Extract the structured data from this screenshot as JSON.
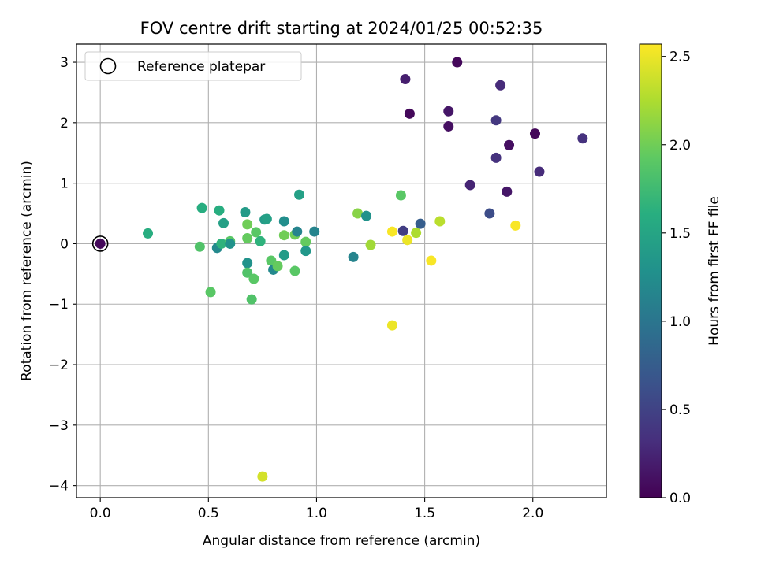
{
  "chart_data": {
    "type": "scatter",
    "title": "FOV centre drift starting at 2024/01/25 00:52:35",
    "xlabel": "Angular distance from reference (arcmin)",
    "ylabel": "Rotation from reference (arcmin)",
    "xlim": [
      -0.11,
      2.34
    ],
    "ylim": [
      -4.2,
      3.3
    ],
    "xticks": [
      0.0,
      0.5,
      1.0,
      1.5,
      2.0
    ],
    "xtick_labels": [
      "0.0",
      "0.5",
      "1.0",
      "1.5",
      "2.0"
    ],
    "yticks": [
      3,
      2,
      1,
      0,
      -1,
      -2,
      -3,
      -4
    ],
    "ytick_labels": [
      "3",
      "2",
      "1",
      "0",
      "−1",
      "−2",
      "−3",
      "−4"
    ],
    "grid": true,
    "legend": {
      "position": "top-left",
      "entries": [
        "Reference platepar"
      ]
    },
    "reference_point": {
      "x": 0.0,
      "y": 0.0
    },
    "colorbar": {
      "label": "Hours from first FF file",
      "range": [
        0.0,
        2.57
      ],
      "ticks": [
        0.0,
        0.5,
        1.0,
        1.5,
        2.0,
        2.5
      ],
      "tick_labels": [
        "0.0",
        "0.5",
        "1.0",
        "1.5",
        "2.0",
        "2.5"
      ],
      "colormap": "viridis"
    },
    "points": [
      {
        "x": 0.0,
        "y": 0.0,
        "c": 0.05
      },
      {
        "x": 0.22,
        "y": 0.17,
        "c": 1.6
      },
      {
        "x": 0.46,
        "y": -0.05,
        "c": 1.85
      },
      {
        "x": 0.47,
        "y": 0.59,
        "c": 1.6
      },
      {
        "x": 0.51,
        "y": -0.8,
        "c": 1.9
      },
      {
        "x": 0.55,
        "y": 0.55,
        "c": 1.6
      },
      {
        "x": 0.54,
        "y": -0.07,
        "c": 1.2
      },
      {
        "x": 0.56,
        "y": 0.0,
        "c": 1.65
      },
      {
        "x": 0.57,
        "y": 0.34,
        "c": 1.45
      },
      {
        "x": 0.6,
        "y": 0.04,
        "c": 1.9
      },
      {
        "x": 0.6,
        "y": 0.0,
        "c": 1.3
      },
      {
        "x": 0.67,
        "y": 0.52,
        "c": 1.4
      },
      {
        "x": 0.68,
        "y": 0.32,
        "c": 2.0
      },
      {
        "x": 0.68,
        "y": 0.09,
        "c": 1.95
      },
      {
        "x": 0.68,
        "y": -0.32,
        "c": 1.3
      },
      {
        "x": 0.68,
        "y": -0.48,
        "c": 1.85
      },
      {
        "x": 0.7,
        "y": -0.92,
        "c": 1.85
      },
      {
        "x": 0.71,
        "y": -0.58,
        "c": 1.9
      },
      {
        "x": 0.72,
        "y": 0.19,
        "c": 1.9
      },
      {
        "x": 0.74,
        "y": 0.04,
        "c": 1.65
      },
      {
        "x": 0.76,
        "y": 0.4,
        "c": 1.4
      },
      {
        "x": 0.77,
        "y": 0.41,
        "c": 1.45
      },
      {
        "x": 0.75,
        "y": -3.85,
        "c": 2.4
      },
      {
        "x": 0.79,
        "y": -0.28,
        "c": 1.9
      },
      {
        "x": 0.8,
        "y": -0.43,
        "c": 1.2
      },
      {
        "x": 0.82,
        "y": -0.37,
        "c": 1.95
      },
      {
        "x": 0.85,
        "y": 0.14,
        "c": 2.0
      },
      {
        "x": 0.85,
        "y": -0.19,
        "c": 1.4
      },
      {
        "x": 0.85,
        "y": 0.37,
        "c": 1.25
      },
      {
        "x": 0.9,
        "y": 0.15,
        "c": 2.0
      },
      {
        "x": 0.9,
        "y": -0.45,
        "c": 1.9
      },
      {
        "x": 0.91,
        "y": 0.2,
        "c": 1.15
      },
      {
        "x": 0.92,
        "y": 0.81,
        "c": 1.45
      },
      {
        "x": 0.95,
        "y": 0.03,
        "c": 1.95
      },
      {
        "x": 0.95,
        "y": -0.12,
        "c": 1.35
      },
      {
        "x": 0.99,
        "y": 0.2,
        "c": 1.15
      },
      {
        "x": 1.17,
        "y": -0.22,
        "c": 1.15
      },
      {
        "x": 1.19,
        "y": 0.5,
        "c": 2.1
      },
      {
        "x": 1.23,
        "y": 0.46,
        "c": 1.3
      },
      {
        "x": 1.25,
        "y": -0.02,
        "c": 2.2
      },
      {
        "x": 1.35,
        "y": 0.2,
        "c": 2.55
      },
      {
        "x": 1.35,
        "y": -1.35,
        "c": 2.5
      },
      {
        "x": 1.39,
        "y": 0.8,
        "c": 1.9
      },
      {
        "x": 1.4,
        "y": 0.21,
        "c": 0.45
      },
      {
        "x": 1.42,
        "y": 0.06,
        "c": 2.5
      },
      {
        "x": 1.41,
        "y": 2.72,
        "c": 0.2
      },
      {
        "x": 1.43,
        "y": 2.15,
        "c": 0.05
      },
      {
        "x": 1.46,
        "y": 0.18,
        "c": 2.25
      },
      {
        "x": 1.48,
        "y": 0.33,
        "c": 0.75
      },
      {
        "x": 1.53,
        "y": -0.28,
        "c": 2.55
      },
      {
        "x": 1.57,
        "y": 0.37,
        "c": 2.3
      },
      {
        "x": 1.61,
        "y": 2.19,
        "c": 0.15
      },
      {
        "x": 1.61,
        "y": 1.94,
        "c": 0.1
      },
      {
        "x": 1.65,
        "y": 3.0,
        "c": 0.05
      },
      {
        "x": 1.71,
        "y": 0.97,
        "c": 0.25
      },
      {
        "x": 1.8,
        "y": 0.5,
        "c": 0.6
      },
      {
        "x": 1.83,
        "y": 2.04,
        "c": 0.4
      },
      {
        "x": 1.83,
        "y": 1.42,
        "c": 0.35
      },
      {
        "x": 1.85,
        "y": 2.62,
        "c": 0.3
      },
      {
        "x": 1.88,
        "y": 0.86,
        "c": 0.15
      },
      {
        "x": 1.89,
        "y": 1.63,
        "c": 0.1
      },
      {
        "x": 1.92,
        "y": 0.3,
        "c": 2.55
      },
      {
        "x": 2.01,
        "y": 1.82,
        "c": 0.05
      },
      {
        "x": 2.03,
        "y": 1.19,
        "c": 0.3
      },
      {
        "x": 2.23,
        "y": 1.74,
        "c": 0.35
      }
    ]
  }
}
